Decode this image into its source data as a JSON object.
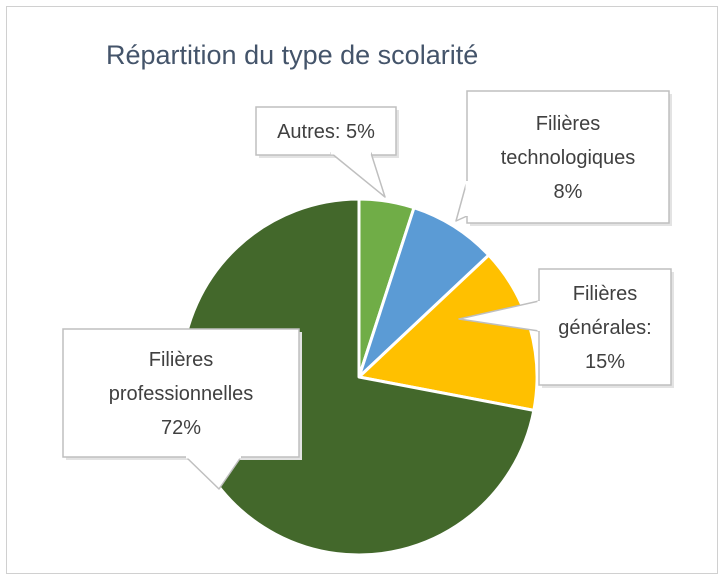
{
  "chart_data": {
    "type": "pie",
    "title": "Répartition du type de scolarité",
    "start_angle_deg": 0,
    "direction": "clockwise",
    "slices": [
      {
        "label_lines": [
          "Autres: 5%"
        ],
        "value": 5,
        "color": "#70ad47"
      },
      {
        "label_lines": [
          "Filières",
          "technologiques",
          "8%"
        ],
        "value": 8,
        "color": "#5b9bd5"
      },
      {
        "label_lines": [
          "Filières",
          "générales:",
          "15%"
        ],
        "value": 15,
        "color": "#ffc000"
      },
      {
        "label_lines": [
          "Filières",
          "professionnelles",
          "72%"
        ],
        "value": 72,
        "color": "#43682b"
      }
    ]
  }
}
